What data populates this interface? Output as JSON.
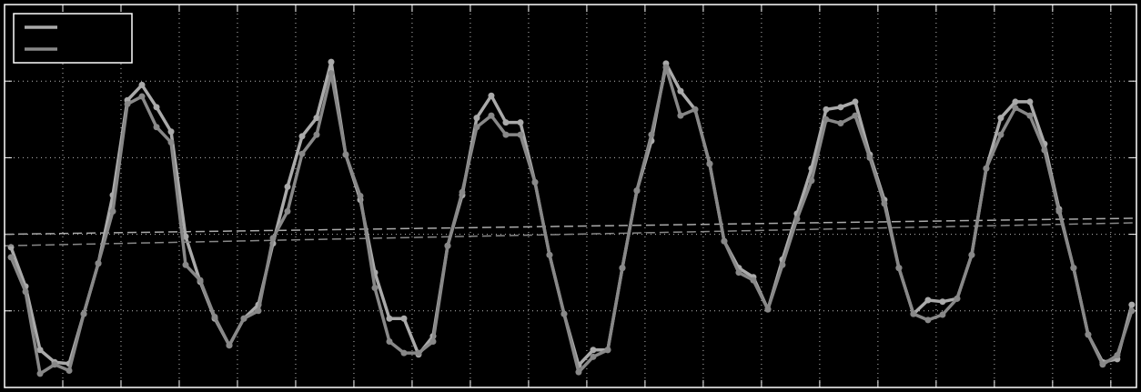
{
  "chart_data": {
    "type": "line",
    "x": [
      0.11,
      0.36,
      0.61,
      0.86,
      1.11,
      1.36,
      1.61,
      1.86,
      2.11,
      2.36,
      2.61,
      2.86,
      3.11,
      3.36,
      3.61,
      3.86,
      4.11,
      4.36,
      4.61,
      4.86,
      5.11,
      5.36,
      5.61,
      5.86,
      6.11,
      6.36,
      6.61,
      6.86,
      7.11,
      7.36,
      7.61,
      7.86,
      8.11,
      8.36,
      8.61,
      8.86,
      9.11,
      9.36,
      9.61,
      9.86,
      10.11,
      10.36,
      10.61,
      10.86,
      11.11,
      11.36,
      11.61,
      11.86,
      12.11,
      12.36,
      12.61,
      12.86,
      13.11,
      13.36,
      13.61,
      13.86,
      14.11,
      14.36,
      14.61,
      14.86,
      15.11,
      15.36,
      15.61,
      15.86,
      16.11,
      16.36,
      16.61,
      16.86,
      17.11,
      17.36,
      17.61,
      17.86,
      18.11,
      18.36,
      18.61,
      18.86,
      19.11,
      19.36
    ],
    "series": [
      {
        "color": "#aaaaaa",
        "trend": [
          2.0,
          2.21
        ],
        "values": [
          1.83,
          1.32,
          0.49,
          0.33,
          0.31,
          0.96,
          1.62,
          2.51,
          3.75,
          3.95,
          3.66,
          3.34,
          1.97,
          1.38,
          0.9,
          0.55,
          0.9,
          1.08,
          1.88,
          2.62,
          3.28,
          3.52,
          4.25,
          3.04,
          2.45,
          1.5,
          0.9,
          0.9,
          0.43,
          0.67,
          1.85,
          2.51,
          3.52,
          3.81,
          3.46,
          3.46,
          2.68,
          1.73,
          0.96,
          0.29,
          0.49,
          0.49,
          1.56,
          2.57,
          3.22,
          4.23,
          3.87,
          3.63,
          2.92,
          1.91,
          1.56,
          1.44,
          1.02,
          1.67,
          2.27,
          2.86,
          3.63,
          3.66,
          3.73,
          3.04,
          2.45,
          1.56,
          0.96,
          1.14,
          1.12,
          1.16,
          1.73,
          2.86,
          3.52,
          3.73,
          3.73,
          3.18,
          2.33,
          1.56,
          0.69,
          0.33,
          0.37,
          1.08
        ]
      },
      {
        "color": "#888888",
        "trend": [
          1.85,
          2.15
        ],
        "values": [
          1.7,
          1.25,
          0.18,
          0.3,
          0.22,
          0.96,
          1.62,
          2.3,
          3.7,
          3.8,
          3.4,
          3.2,
          1.6,
          1.4,
          0.92,
          0.55,
          0.9,
          1.0,
          1.95,
          2.3,
          3.05,
          3.3,
          4.1,
          3.04,
          2.5,
          1.3,
          0.6,
          0.45,
          0.45,
          0.6,
          1.85,
          2.55,
          3.4,
          3.55,
          3.3,
          3.3,
          2.68,
          1.73,
          0.96,
          0.2,
          0.4,
          0.49,
          1.56,
          2.57,
          3.3,
          4.18,
          3.55,
          3.63,
          2.92,
          1.91,
          1.5,
          1.4,
          1.02,
          1.6,
          2.2,
          2.7,
          3.5,
          3.45,
          3.55,
          3.0,
          2.4,
          1.56,
          0.96,
          0.88,
          0.95,
          1.16,
          1.73,
          2.86,
          3.3,
          3.65,
          3.55,
          3.1,
          2.3,
          1.56,
          0.69,
          0.3,
          0.42,
          1.0
        ]
      }
    ],
    "xlim": [
      0,
      19.44
    ],
    "ylim": [
      0,
      5
    ],
    "xticks": [
      1,
      2,
      3,
      4,
      5,
      6,
      7,
      8,
      9,
      10,
      11,
      12,
      13,
      14,
      15,
      16,
      17,
      18,
      19
    ],
    "yticks": [
      1,
      2,
      3,
      4
    ],
    "grid": true,
    "legend": "upper left"
  }
}
